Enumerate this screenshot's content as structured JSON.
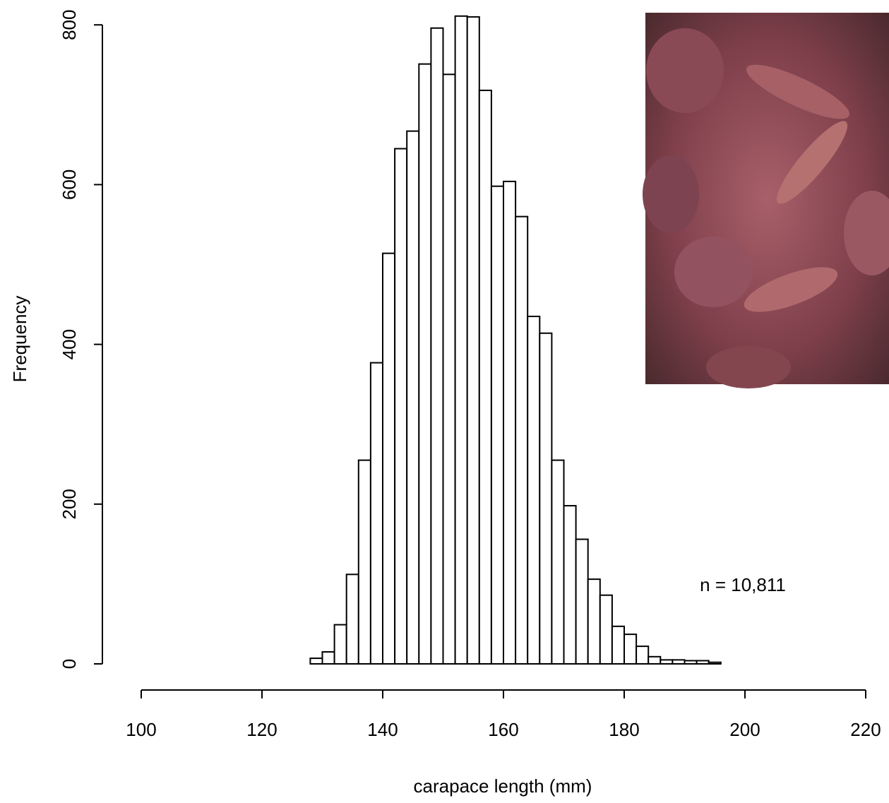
{
  "chart_data": {
    "type": "histogram",
    "xlabel": "carapace length (mm)",
    "ylabel": "Frequency",
    "annotation": "n = 10,811",
    "bins": [
      96,
      98,
      100,
      102,
      104,
      106,
      108,
      110,
      112,
      114,
      116,
      118,
      120,
      122,
      124,
      126,
      128,
      130,
      132,
      134,
      136,
      138,
      140,
      142,
      144,
      146,
      148,
      150,
      152,
      154,
      156,
      158,
      160,
      162,
      164,
      166,
      168,
      170,
      172,
      174,
      176,
      178,
      180,
      182,
      184,
      186,
      188,
      190,
      192,
      194,
      196,
      198,
      200,
      202,
      204,
      206
    ],
    "counts": [
      0,
      0,
      0,
      0,
      0,
      0,
      0,
      0,
      0,
      0,
      0,
      0,
      0,
      0,
      0,
      0,
      7,
      15,
      49,
      112,
      255,
      377,
      514,
      645,
      667,
      751,
      796,
      738,
      811,
      810,
      718,
      598,
      604,
      560,
      435,
      414,
      255,
      198,
      156,
      106,
      86,
      47,
      37,
      22,
      9,
      5,
      5,
      4,
      4,
      2,
      0,
      0,
      0,
      0,
      0
    ],
    "color": "#ffffff",
    "xlim": [
      95,
      221
    ],
    "xticks": [
      100,
      120,
      140,
      160,
      180,
      200,
      220
    ],
    "ylim": [
      0,
      820
    ],
    "yticks": [
      0,
      200,
      400,
      600,
      800
    ]
  }
}
